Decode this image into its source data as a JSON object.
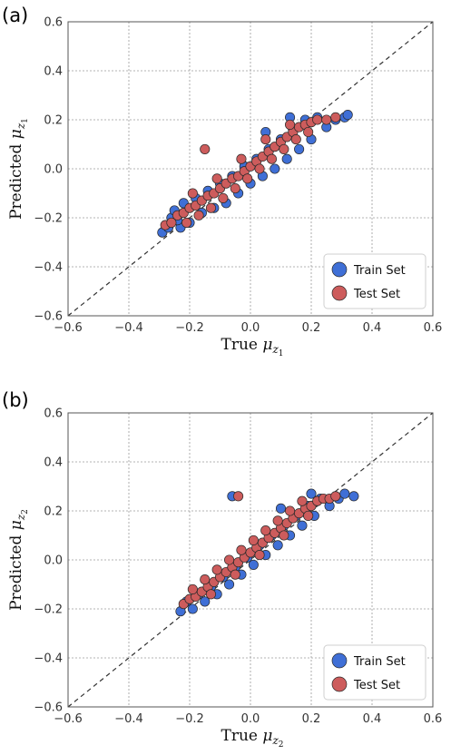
{
  "chart_data": [
    {
      "type": "scatter",
      "panel_label": "(a)",
      "xlabel_main": "True ",
      "xlabel_symbol": "μ",
      "xlabel_sub": "z",
      "xlabel_subsub": "1",
      "ylabel_main": "Predicted ",
      "ylabel_symbol": "μ",
      "ylabel_sub": "z",
      "ylabel_subsub": "1",
      "xlim": [
        -0.6,
        0.6
      ],
      "ylim": [
        -0.6,
        0.6
      ],
      "xticks": [
        -0.6,
        -0.4,
        -0.2,
        0.0,
        0.2,
        0.4,
        0.6
      ],
      "yticks": [
        -0.6,
        -0.4,
        -0.2,
        0.0,
        0.2,
        0.4,
        0.6
      ],
      "xtick_labels": [
        "−0.6",
        "−0.4",
        "−0.2",
        "0.0",
        "0.2",
        "0.4",
        "0.6"
      ],
      "ytick_labels": [
        "−0.6",
        "−0.4",
        "−0.2",
        "0.0",
        "0.2",
        "0.4",
        "0.6"
      ],
      "grid": true,
      "reference_line": "y = x",
      "legend_position": "bottom-right",
      "series": [
        {
          "name": "Train Set",
          "color": "#3f6fd6",
          "points": [
            [
              -0.29,
              -0.26
            ],
            [
              -0.27,
              -0.24
            ],
            [
              -0.26,
              -0.2
            ],
            [
              -0.25,
              -0.17
            ],
            [
              -0.23,
              -0.24
            ],
            [
              -0.22,
              -0.14
            ],
            [
              -0.2,
              -0.22
            ],
            [
              -0.18,
              -0.12
            ],
            [
              -0.16,
              -0.18
            ],
            [
              -0.14,
              -0.09
            ],
            [
              -0.12,
              -0.16
            ],
            [
              -0.1,
              -0.06
            ],
            [
              -0.08,
              -0.14
            ],
            [
              -0.06,
              -0.03
            ],
            [
              -0.04,
              -0.1
            ],
            [
              -0.02,
              0.01
            ],
            [
              0.0,
              -0.06
            ],
            [
              0.02,
              0.04
            ],
            [
              0.04,
              -0.03
            ],
            [
              0.06,
              0.08
            ],
            [
              0.08,
              0.0
            ],
            [
              0.1,
              0.12
            ],
            [
              0.12,
              0.04
            ],
            [
              0.14,
              0.16
            ],
            [
              0.16,
              0.08
            ],
            [
              0.18,
              0.2
            ],
            [
              0.2,
              0.12
            ],
            [
              0.22,
              0.21
            ],
            [
              0.25,
              0.17
            ],
            [
              0.28,
              0.2
            ],
            [
              0.31,
              0.21
            ],
            [
              0.32,
              0.22
            ],
            [
              -0.24,
              -0.21
            ],
            [
              0.05,
              0.15
            ],
            [
              0.13,
              0.21
            ]
          ]
        },
        {
          "name": "Test Set",
          "color": "#cd5c5c",
          "points": [
            [
              -0.28,
              -0.23
            ],
            [
              -0.26,
              -0.22
            ],
            [
              -0.24,
              -0.19
            ],
            [
              -0.22,
              -0.18
            ],
            [
              -0.2,
              -0.16
            ],
            [
              -0.18,
              -0.15
            ],
            [
              -0.16,
              -0.13
            ],
            [
              -0.14,
              -0.11
            ],
            [
              -0.12,
              -0.1
            ],
            [
              -0.1,
              -0.08
            ],
            [
              -0.08,
              -0.06
            ],
            [
              -0.06,
              -0.04
            ],
            [
              -0.04,
              -0.03
            ],
            [
              -0.02,
              -0.01
            ],
            [
              0.0,
              0.01
            ],
            [
              0.02,
              0.03
            ],
            [
              0.04,
              0.05
            ],
            [
              0.06,
              0.07
            ],
            [
              0.08,
              0.09
            ],
            [
              0.1,
              0.11
            ],
            [
              0.12,
              0.13
            ],
            [
              0.14,
              0.15
            ],
            [
              0.16,
              0.17
            ],
            [
              0.18,
              0.18
            ],
            [
              0.2,
              0.19
            ],
            [
              0.22,
              0.2
            ],
            [
              0.25,
              0.2
            ],
            [
              0.28,
              0.21
            ],
            [
              -0.21,
              -0.22
            ],
            [
              -0.17,
              -0.19
            ],
            [
              -0.13,
              -0.16
            ],
            [
              -0.09,
              -0.12
            ],
            [
              -0.05,
              -0.08
            ],
            [
              -0.01,
              -0.04
            ],
            [
              0.03,
              0.0
            ],
            [
              0.07,
              0.04
            ],
            [
              0.11,
              0.08
            ],
            [
              0.15,
              0.12
            ],
            [
              0.19,
              0.15
            ],
            [
              -0.19,
              -0.1
            ],
            [
              -0.11,
              -0.04
            ],
            [
              -0.03,
              0.04
            ],
            [
              0.05,
              0.12
            ],
            [
              0.13,
              0.18
            ],
            [
              -0.15,
              0.08
            ]
          ]
        }
      ]
    },
    {
      "type": "scatter",
      "panel_label": "(b)",
      "xlabel_main": "True ",
      "xlabel_symbol": "μ",
      "xlabel_sub": "z",
      "xlabel_subsub": "2",
      "ylabel_main": "Predicted ",
      "ylabel_symbol": "μ",
      "ylabel_sub": "z",
      "ylabel_subsub": "2",
      "xlim": [
        -0.6,
        0.6
      ],
      "ylim": [
        -0.6,
        0.6
      ],
      "xticks": [
        -0.6,
        -0.4,
        -0.2,
        0.0,
        0.2,
        0.4,
        0.6
      ],
      "yticks": [
        -0.6,
        -0.4,
        -0.2,
        0.0,
        0.2,
        0.4,
        0.6
      ],
      "xtick_labels": [
        "−0.6",
        "−0.4",
        "−0.2",
        "0.0",
        "0.2",
        "0.4",
        "0.6"
      ],
      "ytick_labels": [
        "−0.6",
        "−0.4",
        "−0.2",
        "0.0",
        "0.2",
        "0.4",
        "0.6"
      ],
      "grid": true,
      "reference_line": "y = x",
      "legend_position": "bottom-right",
      "series": [
        {
          "name": "Train Set",
          "color": "#3f6fd6",
          "points": [
            [
              -0.23,
              -0.21
            ],
            [
              -0.21,
              -0.17
            ],
            [
              -0.19,
              -0.2
            ],
            [
              -0.17,
              -0.14
            ],
            [
              -0.15,
              -0.17
            ],
            [
              -0.13,
              -0.11
            ],
            [
              -0.11,
              -0.14
            ],
            [
              -0.09,
              -0.07
            ],
            [
              -0.07,
              -0.1
            ],
            [
              -0.05,
              -0.03
            ],
            [
              -0.03,
              -0.06
            ],
            [
              -0.01,
              0.01
            ],
            [
              0.01,
              -0.02
            ],
            [
              0.03,
              0.06
            ],
            [
              0.05,
              0.02
            ],
            [
              0.07,
              0.1
            ],
            [
              0.09,
              0.06
            ],
            [
              0.11,
              0.14
            ],
            [
              0.13,
              0.1
            ],
            [
              0.15,
              0.18
            ],
            [
              0.17,
              0.14
            ],
            [
              0.19,
              0.22
            ],
            [
              0.21,
              0.18
            ],
            [
              0.23,
              0.25
            ],
            [
              0.26,
              0.22
            ],
            [
              0.29,
              0.25
            ],
            [
              0.31,
              0.27
            ],
            [
              0.34,
              0.26
            ],
            [
              -0.06,
              0.26
            ],
            [
              0.1,
              0.21
            ],
            [
              0.2,
              0.27
            ]
          ]
        },
        {
          "name": "Test Set",
          "color": "#cd5c5c",
          "points": [
            [
              -0.22,
              -0.18
            ],
            [
              -0.2,
              -0.16
            ],
            [
              -0.18,
              -0.15
            ],
            [
              -0.16,
              -0.13
            ],
            [
              -0.14,
              -0.11
            ],
            [
              -0.12,
              -0.09
            ],
            [
              -0.1,
              -0.07
            ],
            [
              -0.08,
              -0.05
            ],
            [
              -0.06,
              -0.03
            ],
            [
              -0.04,
              -0.01
            ],
            [
              -0.02,
              0.01
            ],
            [
              0.0,
              0.03
            ],
            [
              0.02,
              0.05
            ],
            [
              0.04,
              0.07
            ],
            [
              0.06,
              0.09
            ],
            [
              0.08,
              0.11
            ],
            [
              0.1,
              0.13
            ],
            [
              0.12,
              0.15
            ],
            [
              0.14,
              0.17
            ],
            [
              0.16,
              0.19
            ],
            [
              0.18,
              0.21
            ],
            [
              0.2,
              0.22
            ],
            [
              0.22,
              0.24
            ],
            [
              0.24,
              0.25
            ],
            [
              0.26,
              0.25
            ],
            [
              0.28,
              0.26
            ],
            [
              -0.19,
              -0.12
            ],
            [
              -0.15,
              -0.08
            ],
            [
              -0.11,
              -0.04
            ],
            [
              -0.07,
              0.0
            ],
            [
              -0.03,
              0.04
            ],
            [
              0.01,
              0.08
            ],
            [
              0.05,
              0.12
            ],
            [
              0.09,
              0.16
            ],
            [
              0.13,
              0.2
            ],
            [
              0.17,
              0.24
            ],
            [
              -0.13,
              -0.14
            ],
            [
              -0.05,
              -0.06
            ],
            [
              0.03,
              0.02
            ],
            [
              0.11,
              0.1
            ],
            [
              0.19,
              0.18
            ],
            [
              -0.04,
              0.26
            ]
          ]
        }
      ]
    }
  ]
}
